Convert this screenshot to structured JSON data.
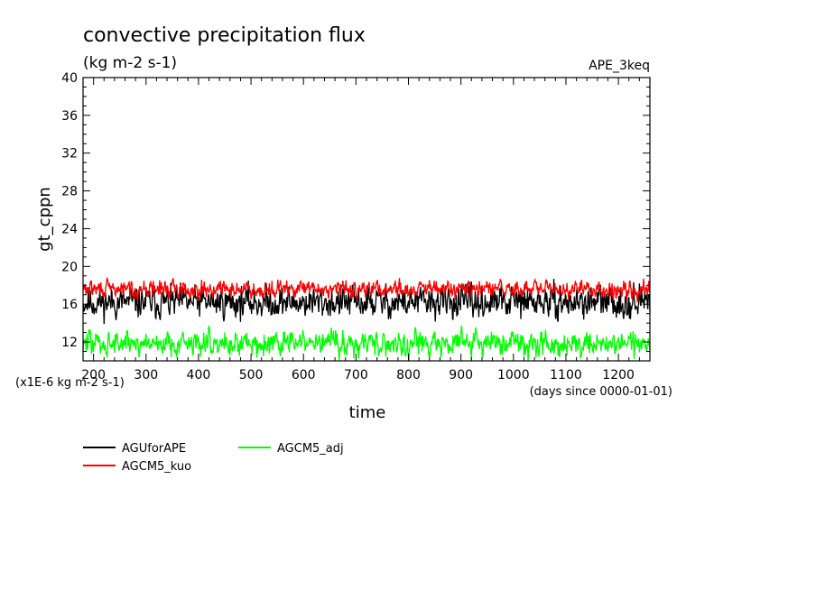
{
  "chart_data": {
    "type": "line",
    "title": "convective precipitation flux",
    "subtitle": "(kg m-2 s-1)",
    "tag": "APE_3keq",
    "ylabel": "gt_cppn",
    "xlabel": "time",
    "x_unit_note": "(days since 0000-01-01)",
    "y_unit_note": "(x1E-6 kg m-2 s-1)",
    "xlim": [
      180,
      1260
    ],
    "ylim": [
      10,
      40
    ],
    "x_ticks": [
      200,
      300,
      400,
      500,
      600,
      700,
      800,
      900,
      1000,
      1100,
      1200
    ],
    "y_ticks": [
      12,
      16,
      20,
      24,
      28,
      32,
      36,
      40
    ],
    "series": [
      {
        "name": "AGUforAPE",
        "color": "#000000",
        "mean": 16.2,
        "amplitude": 1.5,
        "min": 13.5,
        "max": 19.3
      },
      {
        "name": "AGCM5_kuo",
        "color": "#ff0000",
        "mean": 17.6,
        "amplitude": 0.8,
        "min": 15.8,
        "max": 19.8
      },
      {
        "name": "AGCM5_adj",
        "color": "#00ff00",
        "mean": 11.9,
        "amplitude": 1.2,
        "min": 10.0,
        "max": 15.0
      }
    ],
    "legend": [
      {
        "label": "AGUforAPE",
        "color": "#000000"
      },
      {
        "label": "AGCM5_adj",
        "color": "#00ff00"
      },
      {
        "label": "AGCM5_kuo",
        "color": "#ff0000"
      }
    ]
  }
}
